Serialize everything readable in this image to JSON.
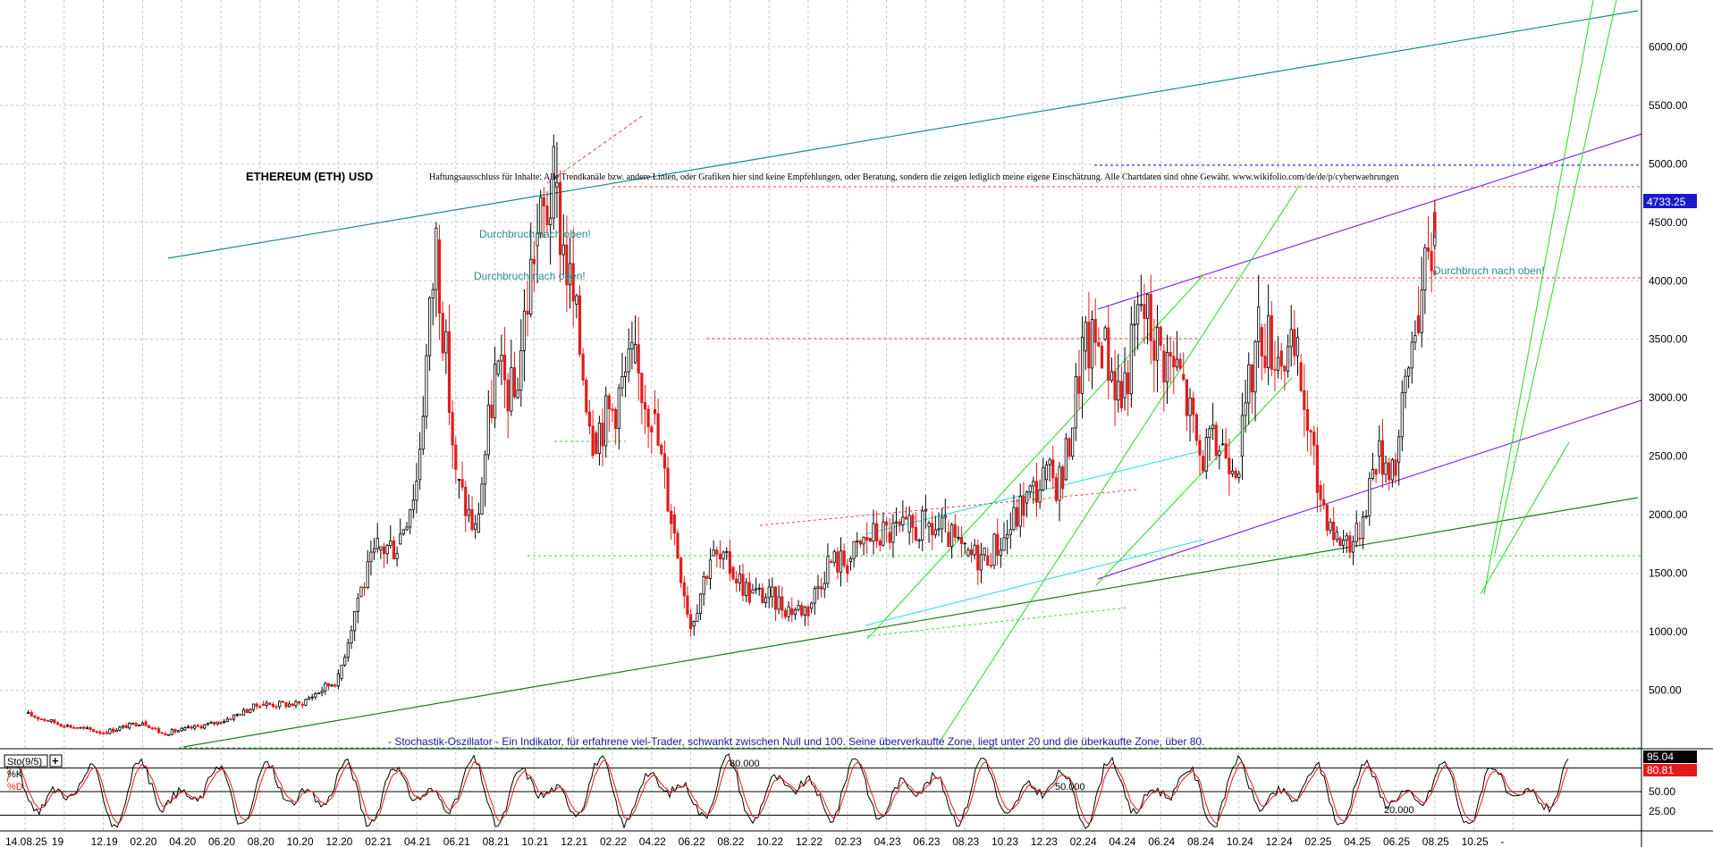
{
  "chart_data": [
    {
      "type": "candlestick",
      "title": "ETHEREUM (ETH) USD",
      "disclaimer": "Haftungsausschluss für Inhalte: Alle Trendkanäle bzw. andere Linien, oder Grafiken hier sind keine Empfehlungen, oder Beratung, sondern die zeigen lediglich meine eigene Einschätzung. Alle Chartdaten sind ohne Gewähr. www.wikifolio.com/de/de/p/cyberwaehrungen",
      "note": "- Stochastik-Oszillator - Ein Indikator, für erfahrene viel-Trader, schwankt zwischen Null und 100. Seine überverkaufte Zone, liegt unter 20 und die überkaufte Zone, über 80.",
      "y_ticks": [
        "6000.00",
        "5500.00",
        "5000.00",
        "4500.00",
        "4000.00",
        "3500.00",
        "3000.00",
        "2500.00",
        "2000.00",
        "1500.00",
        "1000.00",
        "500.00"
      ],
      "y_tick_values": [
        6000,
        5500,
        5000,
        4500,
        4000,
        3500,
        3000,
        2500,
        2000,
        1500,
        1000,
        500
      ],
      "ylim": [
        0,
        6400
      ],
      "grid": true,
      "current_price": {
        "label": "4733.25",
        "value": 4733.25,
        "color": "#1a1acc"
      },
      "annotations": [
        {
          "text": "Durchbruch nach oben!",
          "x": "04.21",
          "y": 4390
        },
        {
          "text": "Durchbruch nach oben!",
          "x": "04.21",
          "y": 4020
        },
        {
          "text": "Durchbruch nach oben!",
          "x": "09.25",
          "y": 4100
        }
      ],
      "series": [
        {
          "points": [
            [
              "08.19",
              300
            ],
            [
              "10.19",
              200
            ],
            [
              "12.19",
              140
            ],
            [
              "02.20",
              230
            ],
            [
              "03.20",
              130
            ],
            [
              "04.20",
              160
            ],
            [
              "06.20",
              230
            ],
            [
              "08.20",
              380
            ],
            [
              "10.20",
              380
            ],
            [
              "12.20",
              600
            ],
            [
              "01.21",
              1300
            ],
            [
              "02.21",
              1700
            ],
            [
              "03.21",
              1750
            ],
            [
              "04.21",
              2300
            ],
            [
              "05.21",
              4350
            ],
            [
              "06.21",
              2300
            ],
            [
              "07.21",
              1850
            ],
            [
              "08.21",
              3200
            ],
            [
              "09.21",
              3000
            ],
            [
              "10.21",
              4300
            ],
            [
              "11.21",
              4800
            ],
            [
              "12.21",
              3800
            ],
            [
              "01.22",
              2700
            ],
            [
              "02.22",
              2900
            ],
            [
              "03.22",
              3300
            ],
            [
              "04.22",
              2900
            ],
            [
              "05.22",
              2000
            ],
            [
              "06.22",
              1050
            ],
            [
              "07.22",
              1650
            ],
            [
              "08.22",
              1550
            ],
            [
              "09.22",
              1330
            ],
            [
              "10.22",
              1300
            ],
            [
              "11.22",
              1200
            ],
            [
              "12.22",
              1200
            ],
            [
              "01.23",
              1600
            ],
            [
              "02.23",
              1600
            ],
            [
              "03.23",
              1800
            ],
            [
              "04.23",
              1850
            ],
            [
              "05.23",
              1850
            ],
            [
              "06.23",
              1900
            ],
            [
              "07.23",
              1850
            ],
            [
              "08.23",
              1650
            ],
            [
              "09.23",
              1650
            ],
            [
              "10.23",
              1800
            ],
            [
              "11.23",
              2100
            ],
            [
              "12.23",
              2300
            ],
            [
              "01.24",
              2300
            ],
            [
              "02.24",
              3400
            ],
            [
              "03.24",
              3500
            ],
            [
              "04.24",
              3000
            ],
            [
              "05.24",
              3800
            ],
            [
              "06.24",
              3400
            ],
            [
              "07.24",
              3200
            ],
            [
              "08.24",
              2500
            ],
            [
              "09.24",
              2600
            ],
            [
              "10.24",
              2500
            ],
            [
              "11.24",
              3600
            ],
            [
              "12.24",
              3400
            ],
            [
              "01.25",
              3300
            ],
            [
              "02.25",
              2250
            ],
            [
              "03.25",
              1800
            ],
            [
              "04.25",
              1800
            ],
            [
              "05.25",
              2500
            ],
            [
              "06.25",
              2450
            ],
            [
              "07.25",
              3700
            ],
            [
              "08.25",
              4300
            ],
            [
              "08.25",
              4733.25
            ]
          ]
        }
      ]
    },
    {
      "type": "line",
      "title": "Sto(9/5)",
      "series": [
        {
          "name": "%K",
          "color": "#000000",
          "current": "95.04"
        },
        {
          "name": "%D",
          "color": "#e41a1a",
          "current": "80.81"
        }
      ],
      "levels": [
        {
          "label": "80.000",
          "value": 80
        },
        {
          "label": "50.000",
          "value": 50
        },
        {
          "label": "20.000",
          "value": 20
        }
      ],
      "y_ticks": [
        "50.00",
        "25.00"
      ],
      "y_tick_values": [
        50,
        25
      ],
      "ylim": [
        0,
        100
      ]
    }
  ],
  "x_ticks": [
    "14.08.25",
    "19",
    "12.19",
    "02.20",
    "04.20",
    "06.20",
    "08.20",
    "10.20",
    "12.20",
    "02.21",
    "04.21",
    "06.21",
    "08.21",
    "10.21",
    "12.21",
    "02.22",
    "04.22",
    "06.22",
    "08.22",
    "10.22",
    "12.22",
    "02.23",
    "04.23",
    "06.23",
    "08.23",
    "10.23",
    "12.23",
    "02.24",
    "04.24",
    "06.24",
    "08.24",
    "10.24",
    "12.24",
    "02.25",
    "04.25",
    "06.25",
    "08.25",
    "10.25",
    "-"
  ],
  "colors": {
    "grid": "#c8c8c8",
    "up": "#000000",
    "down": "#e41a1a",
    "channel_top": "#1a8a8a",
    "channel_purple": "#8a2be2",
    "trend_green": "#33dd33",
    "trend_dark_green": "#1a7a1a",
    "trend_cyan": "#33dddd",
    "dashed_red": "#ee4444",
    "current_price_bg": "#1a1acc",
    "stoch_d_bg": "#e41a1a"
  }
}
